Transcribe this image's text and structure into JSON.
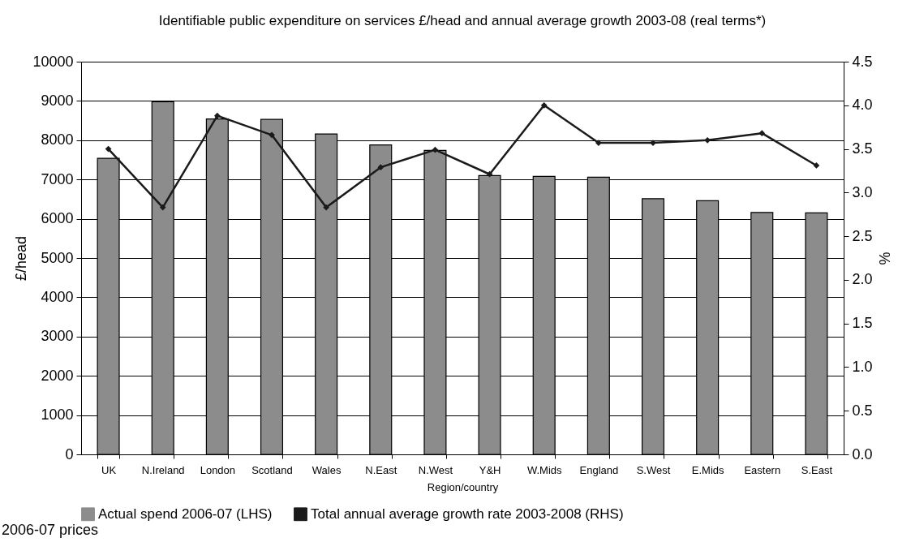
{
  "chart_data": {
    "type": "bar",
    "title": "Identifiable public expenditure on services £/head and annual average growth 2003-08 (real terms*)",
    "xlabel": "Region/country",
    "ylabel": "£/head",
    "y2label": "%",
    "categories": [
      "UK",
      "N.Ireland",
      "London",
      "Scotland",
      "Wales",
      "N.East",
      "N.West",
      "Y&H",
      "W.Mids",
      "England",
      "S.West",
      "E.Mids",
      "Eastern",
      "S.East"
    ],
    "series": [
      {
        "name": "Actual spend 2006-07 (LHS)",
        "color": "#8c8c8c",
        "values": [
          7540,
          8980,
          8540,
          8530,
          8160,
          7880,
          7740,
          7100,
          7080,
          7060,
          6510,
          6460,
          6160,
          6150
        ]
      },
      {
        "name": "Total annual average growth rate 2003-2008 (RHS)",
        "type": "line",
        "axis": "y2",
        "color": "#1a1a1a",
        "values": [
          3.5,
          2.83,
          3.88,
          3.66,
          2.83,
          3.29,
          3.49,
          3.21,
          4.0,
          3.57,
          3.57,
          3.6,
          3.68,
          3.31
        ]
      }
    ],
    "ylim": [
      0,
      10000
    ],
    "yticks": [
      0,
      1000,
      2000,
      3000,
      4000,
      5000,
      6000,
      7000,
      8000,
      9000,
      10000
    ],
    "y2lim": [
      0,
      4.5
    ],
    "y2ticks": [
      {
        "value": 0,
        "label": "0.0"
      },
      0.5,
      {
        "value": 1,
        "label": "1.0"
      },
      1.5,
      {
        "value": 2,
        "label": "2.0"
      },
      2.5,
      {
        "value": 3,
        "label": "3.0"
      },
      3.5,
      {
        "value": 4,
        "label": "4.0"
      },
      4.5
    ],
    "grid": "y",
    "legend": "bottom",
    "marker": "diamond",
    "line_style": "solid",
    "annotations": [
      "2006-07 prices"
    ]
  }
}
